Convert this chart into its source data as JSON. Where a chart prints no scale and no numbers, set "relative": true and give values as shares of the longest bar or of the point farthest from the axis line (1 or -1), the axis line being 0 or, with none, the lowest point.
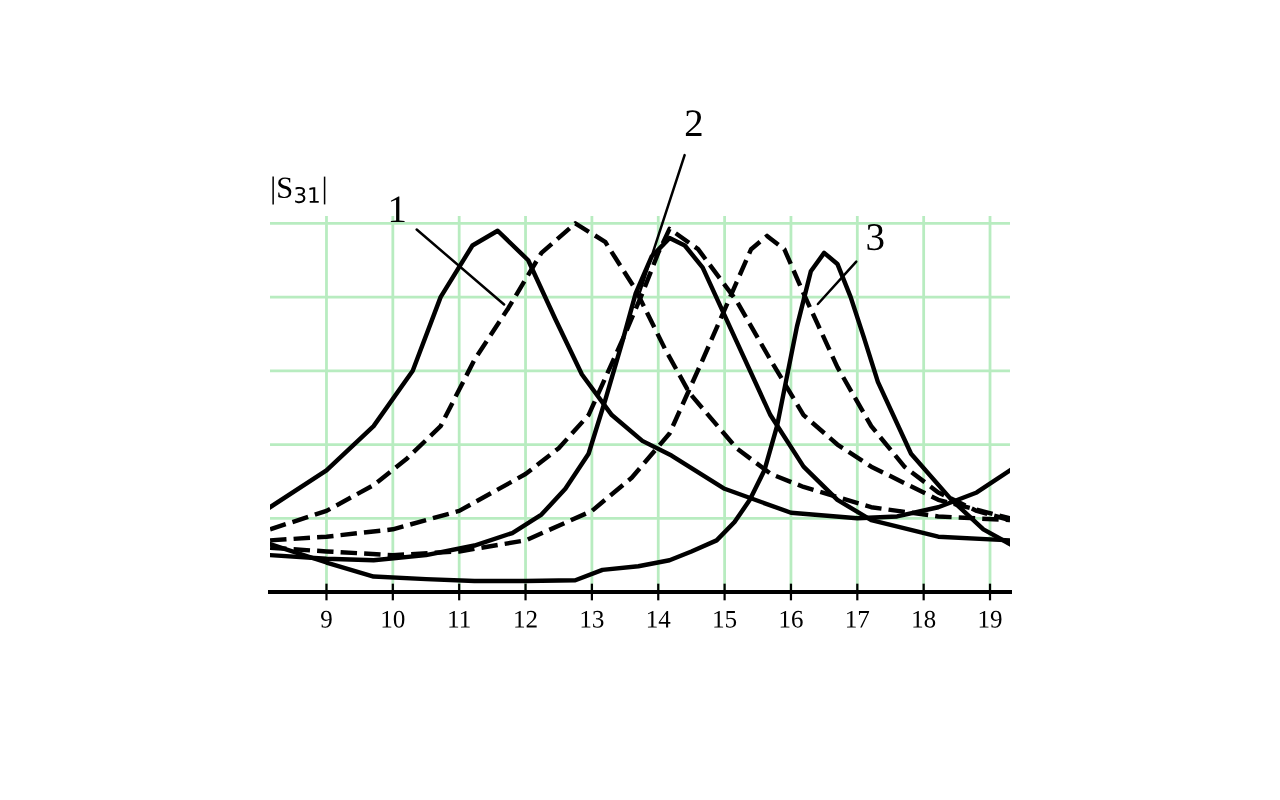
{
  "chart_data": {
    "type": "line",
    "relative": true,
    "ylabel": "|S$_{31}$|",
    "xlim": [
      8.15,
      19.3
    ],
    "xticks": [
      9,
      10,
      11,
      12,
      13,
      14,
      15,
      16,
      17,
      18,
      19
    ],
    "tick_labels": "x",
    "grid": true,
    "legend": false,
    "marker": "none",
    "series": [
      {
        "color": "#000000",
        "line_style": "solid",
        "x": [
          8.15,
          9.0,
          9.71,
          10.3,
          10.72,
          11.2,
          11.58,
          12.04,
          12.45,
          12.85,
          13.3,
          13.76,
          14.2,
          15.0,
          16.0,
          17.0,
          17.6,
          18.22,
          18.8,
          19.3
        ],
        "values": [
          0.23,
          0.33,
          0.45,
          0.6,
          0.8,
          0.94,
          0.98,
          0.9,
          0.74,
          0.59,
          0.48,
          0.41,
          0.37,
          0.28,
          0.215,
          0.2,
          0.205,
          0.23,
          0.27,
          0.33
        ]
      },
      {
        "color": "#000000",
        "line_style": "dashed",
        "x": [
          8.15,
          9.0,
          9.71,
          10.2,
          10.72,
          11.23,
          11.74,
          12.24,
          12.75,
          13.2,
          13.66,
          14.1,
          14.47,
          15.18,
          15.7,
          16.19,
          17.21,
          18.22,
          19.3
        ],
        "values": [
          0.17,
          0.22,
          0.29,
          0.36,
          0.45,
          0.63,
          0.77,
          0.92,
          1.0,
          0.95,
          0.82,
          0.66,
          0.54,
          0.39,
          0.32,
          0.285,
          0.23,
          0.205,
          0.195
        ]
      },
      {
        "color": "#000000",
        "line_style": "solid",
        "x": [
          8.15,
          9.0,
          9.71,
          10.5,
          11.23,
          11.8,
          12.24,
          12.6,
          12.95,
          13.2,
          13.46,
          13.66,
          13.9,
          14.17,
          14.4,
          14.67,
          15.18,
          15.69,
          16.19,
          16.7,
          17.21,
          18.22,
          19.3
        ],
        "values": [
          0.1,
          0.09,
          0.086,
          0.1,
          0.126,
          0.16,
          0.21,
          0.28,
          0.375,
          0.52,
          0.68,
          0.81,
          0.91,
          0.96,
          0.94,
          0.88,
          0.68,
          0.48,
          0.34,
          0.25,
          0.195,
          0.15,
          0.14
        ]
      },
      {
        "color": "#000000",
        "line_style": "dashed",
        "x": [
          8.15,
          9.0,
          10.0,
          11.0,
          12.0,
          12.5,
          12.95,
          13.5,
          13.76,
          14.0,
          14.17,
          14.6,
          15.18,
          15.69,
          16.19,
          16.7,
          17.21,
          18.22,
          19.3
        ],
        "values": [
          0.14,
          0.15,
          0.17,
          0.22,
          0.32,
          0.39,
          0.48,
          0.7,
          0.81,
          0.92,
          0.985,
          0.93,
          0.79,
          0.63,
          0.48,
          0.4,
          0.34,
          0.25,
          0.2
        ]
      },
      {
        "color": "#000000",
        "line_style": "solid",
        "x": [
          8.15,
          9.0,
          9.71,
          10.5,
          11.23,
          12.0,
          12.75,
          13.16,
          13.7,
          14.17,
          14.5,
          14.88,
          15.15,
          15.38,
          15.6,
          15.79,
          16.09,
          16.3,
          16.5,
          16.7,
          16.9,
          17.1,
          17.31,
          17.81,
          18.42,
          18.9,
          19.3
        ],
        "values": [
          0.13,
          0.08,
          0.042,
          0.035,
          0.03,
          0.03,
          0.032,
          0.06,
          0.07,
          0.086,
          0.11,
          0.14,
          0.19,
          0.25,
          0.33,
          0.45,
          0.72,
          0.87,
          0.92,
          0.89,
          0.8,
          0.69,
          0.57,
          0.375,
          0.25,
          0.17,
          0.13
        ]
      },
      {
        "color": "#000000",
        "line_style": "dashed",
        "x": [
          8.15,
          9.0,
          10.0,
          11.0,
          12.0,
          13.0,
          13.6,
          14.17,
          14.67,
          15.18,
          15.4,
          15.64,
          15.9,
          16.19,
          16.7,
          17.21,
          17.71,
          18.22,
          18.8,
          19.3
        ],
        "values": [
          0.12,
          0.11,
          0.1,
          0.11,
          0.14,
          0.22,
          0.31,
          0.43,
          0.63,
          0.84,
          0.93,
          0.966,
          0.93,
          0.81,
          0.61,
          0.45,
          0.34,
          0.27,
          0.22,
          0.195
        ]
      }
    ],
    "annotations": [
      {
        "text": "1",
        "x": 11.74,
        "y": 0.77
      },
      {
        "text": "2",
        "x": 13.7,
        "y": 0.8
      },
      {
        "text": "3",
        "x": 16.35,
        "y": 0.77
      }
    ]
  }
}
